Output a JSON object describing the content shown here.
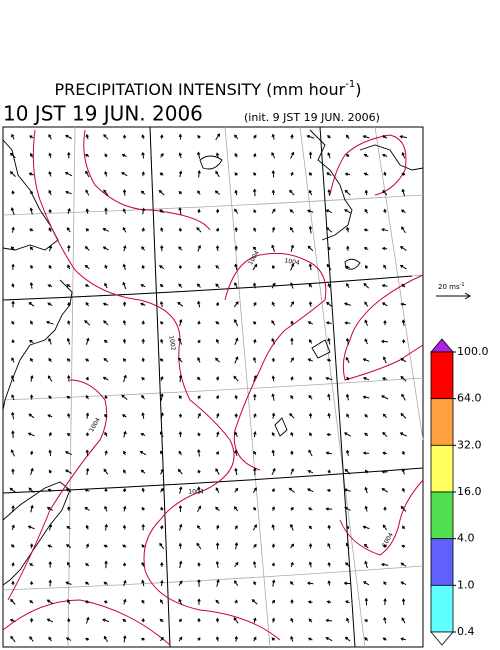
{
  "header": {
    "title": "PRECIPITATION INTENSITY (mm hour",
    "title_sup": "-1",
    "title_end": ")",
    "valid_time": "10 JST 19 JUN. 2006",
    "init": "(init. 9 JST 19 JUN. 2006)"
  },
  "wind_legend": {
    "label": "20 ms",
    "sup": "-1"
  },
  "colorbar": {
    "ticks": [
      {
        "value": 100,
        "label": "100.0"
      },
      {
        "value": 64,
        "label": "64.0"
      },
      {
        "value": 32,
        "label": "32.0"
      },
      {
        "value": 16,
        "label": "16.0"
      },
      {
        "value": 4,
        "label": "4.0"
      },
      {
        "value": 1,
        "label": "1.0"
      },
      {
        "value": 0.4,
        "label": "0.4"
      }
    ],
    "colors": [
      "#ff0000",
      "#ffa040",
      "#ffff60",
      "#50e050",
      "#6060ff",
      "#60ffff"
    ],
    "over_color": "#b020e0",
    "under_color": "#ffffff"
  },
  "contour_labels": [
    "1004",
    "1004",
    "1002",
    "1004",
    "1004",
    "1004"
  ]
}
